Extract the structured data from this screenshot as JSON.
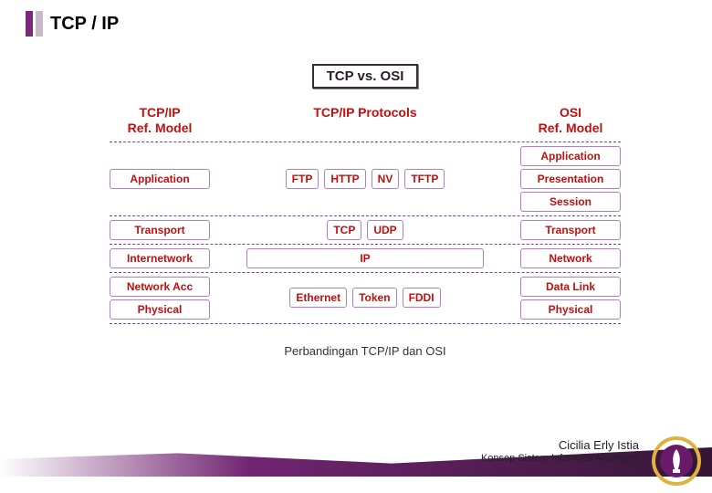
{
  "title": "TCP / IP",
  "diagram": {
    "vs_label": "TCP vs. OSI",
    "caption": "Perbandingan TCP/IP dan OSI",
    "colors": {
      "left_header": "#c01010",
      "mid_header": "#c01010",
      "right_header": "#c01010",
      "box_border": "#b080c0",
      "divider": "#6a4aa0"
    },
    "headers": {
      "left": "TCP/IP\nRef. Model",
      "mid": "TCP/IP Protocols",
      "right": "OSI\nRef. Model"
    },
    "rows": [
      {
        "left": [
          "Application"
        ],
        "mid": [
          "FTP",
          "HTTP",
          "NV",
          "TFTP"
        ],
        "right": [
          "Application",
          "Presentation",
          "Session"
        ]
      },
      {
        "left": [
          "Transport"
        ],
        "mid": [
          "TCP",
          "UDP"
        ],
        "right": [
          "Transport"
        ]
      },
      {
        "left": [
          "Internetwork"
        ],
        "mid": [
          "IP"
        ],
        "right": [
          "Network"
        ]
      },
      {
        "left": [
          "Network Acc",
          "Physical"
        ],
        "mid": [
          "Ethernet",
          "Token",
          "FDDI"
        ],
        "right": [
          "Data Link",
          "Physical"
        ]
      }
    ]
  },
  "footer": {
    "author": "Cicilia Erly Istia",
    "subtitle": "Konsep Sistem Informasi Akuntansi"
  },
  "seal": {
    "ring_color": "#e0b040",
    "inner_color": "#6a1a6a",
    "glyph_color": "#ffffff"
  }
}
